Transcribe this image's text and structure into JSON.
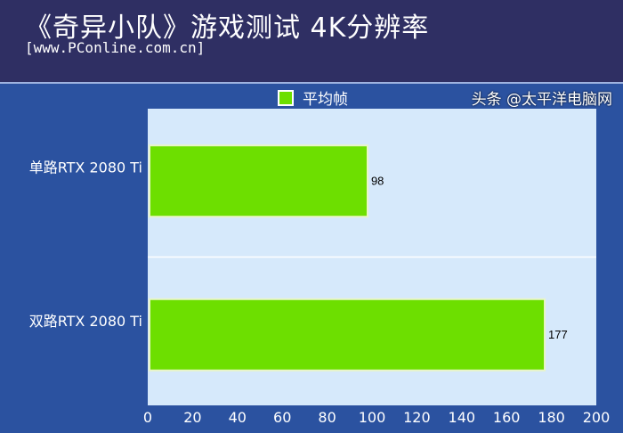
{
  "header": {
    "title": "《奇异小队》游戏测试 4K分辨率",
    "subtitle": "[www.PConline.com.cn]"
  },
  "watermark": "头条 @太平洋电脑网",
  "chart_data": {
    "type": "bar",
    "orientation": "horizontal",
    "title": "《奇异小队》游戏测试 4K分辨率",
    "categories": [
      "单路RTX 2080 Ti",
      "双路RTX 2080 Ti"
    ],
    "series": [
      {
        "name": "平均帧",
        "values": [
          98,
          177
        ],
        "color": "#6ddf00"
      }
    ],
    "xlim": [
      0,
      200
    ],
    "xticks": [
      0,
      20,
      40,
      60,
      80,
      100,
      120,
      140,
      160,
      180,
      200
    ],
    "legend": "top-center",
    "grid": false,
    "plot_background": "#d6e9fb"
  }
}
